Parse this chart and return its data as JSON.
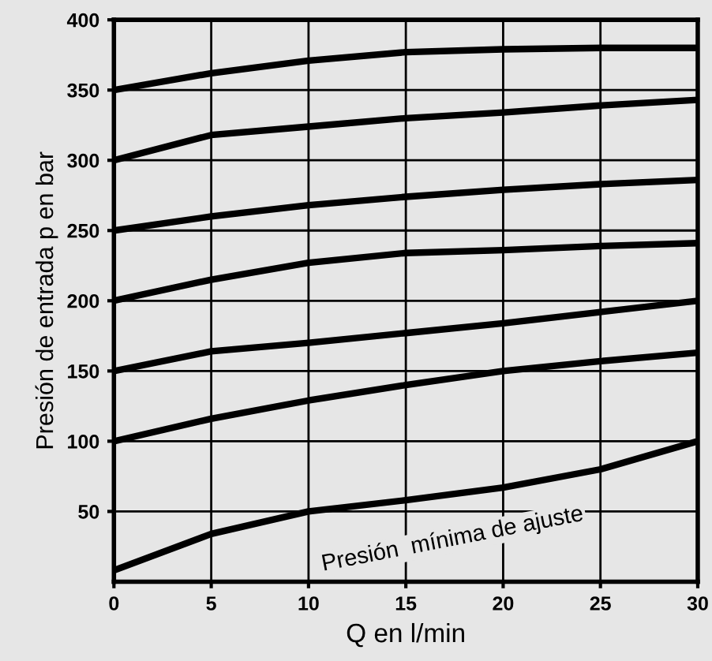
{
  "chart_data": {
    "type": "line",
    "xlabel": "Q en l/min",
    "ylabel": "Presión de entrada p en bar",
    "x": [
      0,
      5,
      10,
      15,
      20,
      25,
      30
    ],
    "series": [
      {
        "color": "#000000",
        "values": [
          350,
          362,
          371,
          377,
          379,
          380,
          380
        ]
      },
      {
        "color": "#000000",
        "values": [
          300,
          318,
          324,
          330,
          334,
          339,
          343
        ]
      },
      {
        "color": "#000000",
        "values": [
          250,
          260,
          268,
          274,
          279,
          283,
          286
        ]
      },
      {
        "color": "#000000",
        "values": [
          200,
          215,
          227,
          234,
          236,
          239,
          241
        ]
      },
      {
        "color": "#000000",
        "values": [
          150,
          164,
          170,
          177,
          184,
          192,
          200
        ]
      },
      {
        "color": "#000000",
        "values": [
          100,
          116,
          129,
          140,
          150,
          157,
          163
        ]
      },
      {
        "color": "#000000",
        "values": [
          8,
          34,
          50,
          58,
          67,
          80,
          100
        ]
      }
    ],
    "annotations": [
      "Presión  mínima de ajuste"
    ],
    "xlim": [
      0,
      30
    ],
    "xticks": [
      0,
      5,
      10,
      15,
      20,
      25,
      30
    ],
    "ylim": [
      0,
      400
    ],
    "yticks": [
      50,
      100,
      150,
      200,
      250,
      300,
      350,
      400
    ],
    "grid": true,
    "marker": "none",
    "line_style": "solid"
  }
}
